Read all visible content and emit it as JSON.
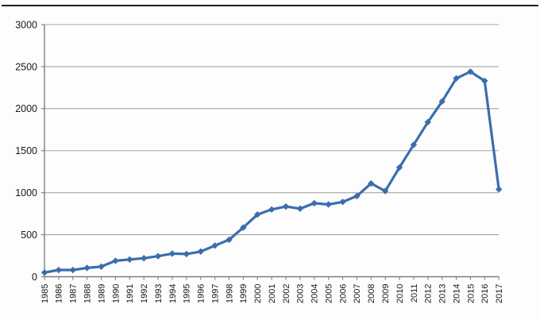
{
  "page": {
    "background_color": "#fdfdfd",
    "top_divider_color": "#1c1c1c"
  },
  "chart_data": {
    "type": "line",
    "title": "",
    "xlabel": "",
    "ylabel": "",
    "categories": [
      1985,
      1986,
      1987,
      1988,
      1989,
      1990,
      1991,
      1992,
      1993,
      1994,
      1995,
      1996,
      1997,
      1998,
      1999,
      2000,
      2001,
      2002,
      2003,
      2004,
      2005,
      2006,
      2007,
      2008,
      2009,
      2010,
      2011,
      2012,
      2013,
      2014,
      2015,
      2016,
      2017
    ],
    "values": [
      50,
      80,
      80,
      105,
      120,
      190,
      205,
      220,
      245,
      275,
      270,
      300,
      370,
      440,
      585,
      740,
      800,
      835,
      810,
      875,
      860,
      890,
      960,
      1110,
      1020,
      1300,
      1570,
      1840,
      2085,
      2360,
      2440,
      2330,
      1040
    ],
    "ylim": [
      0,
      3000
    ],
    "ytick_step": 500,
    "ytick_labels": [
      "0",
      "500",
      "1000",
      "1500",
      "2000",
      "2500",
      "3000"
    ],
    "grid": true,
    "legend": "none",
    "marker": "diamond",
    "series_color": "#3b6dad",
    "gridline_color": "#a6a6a6",
    "axis_color": "#7f7f7f",
    "tick_label_color": "#222222"
  }
}
